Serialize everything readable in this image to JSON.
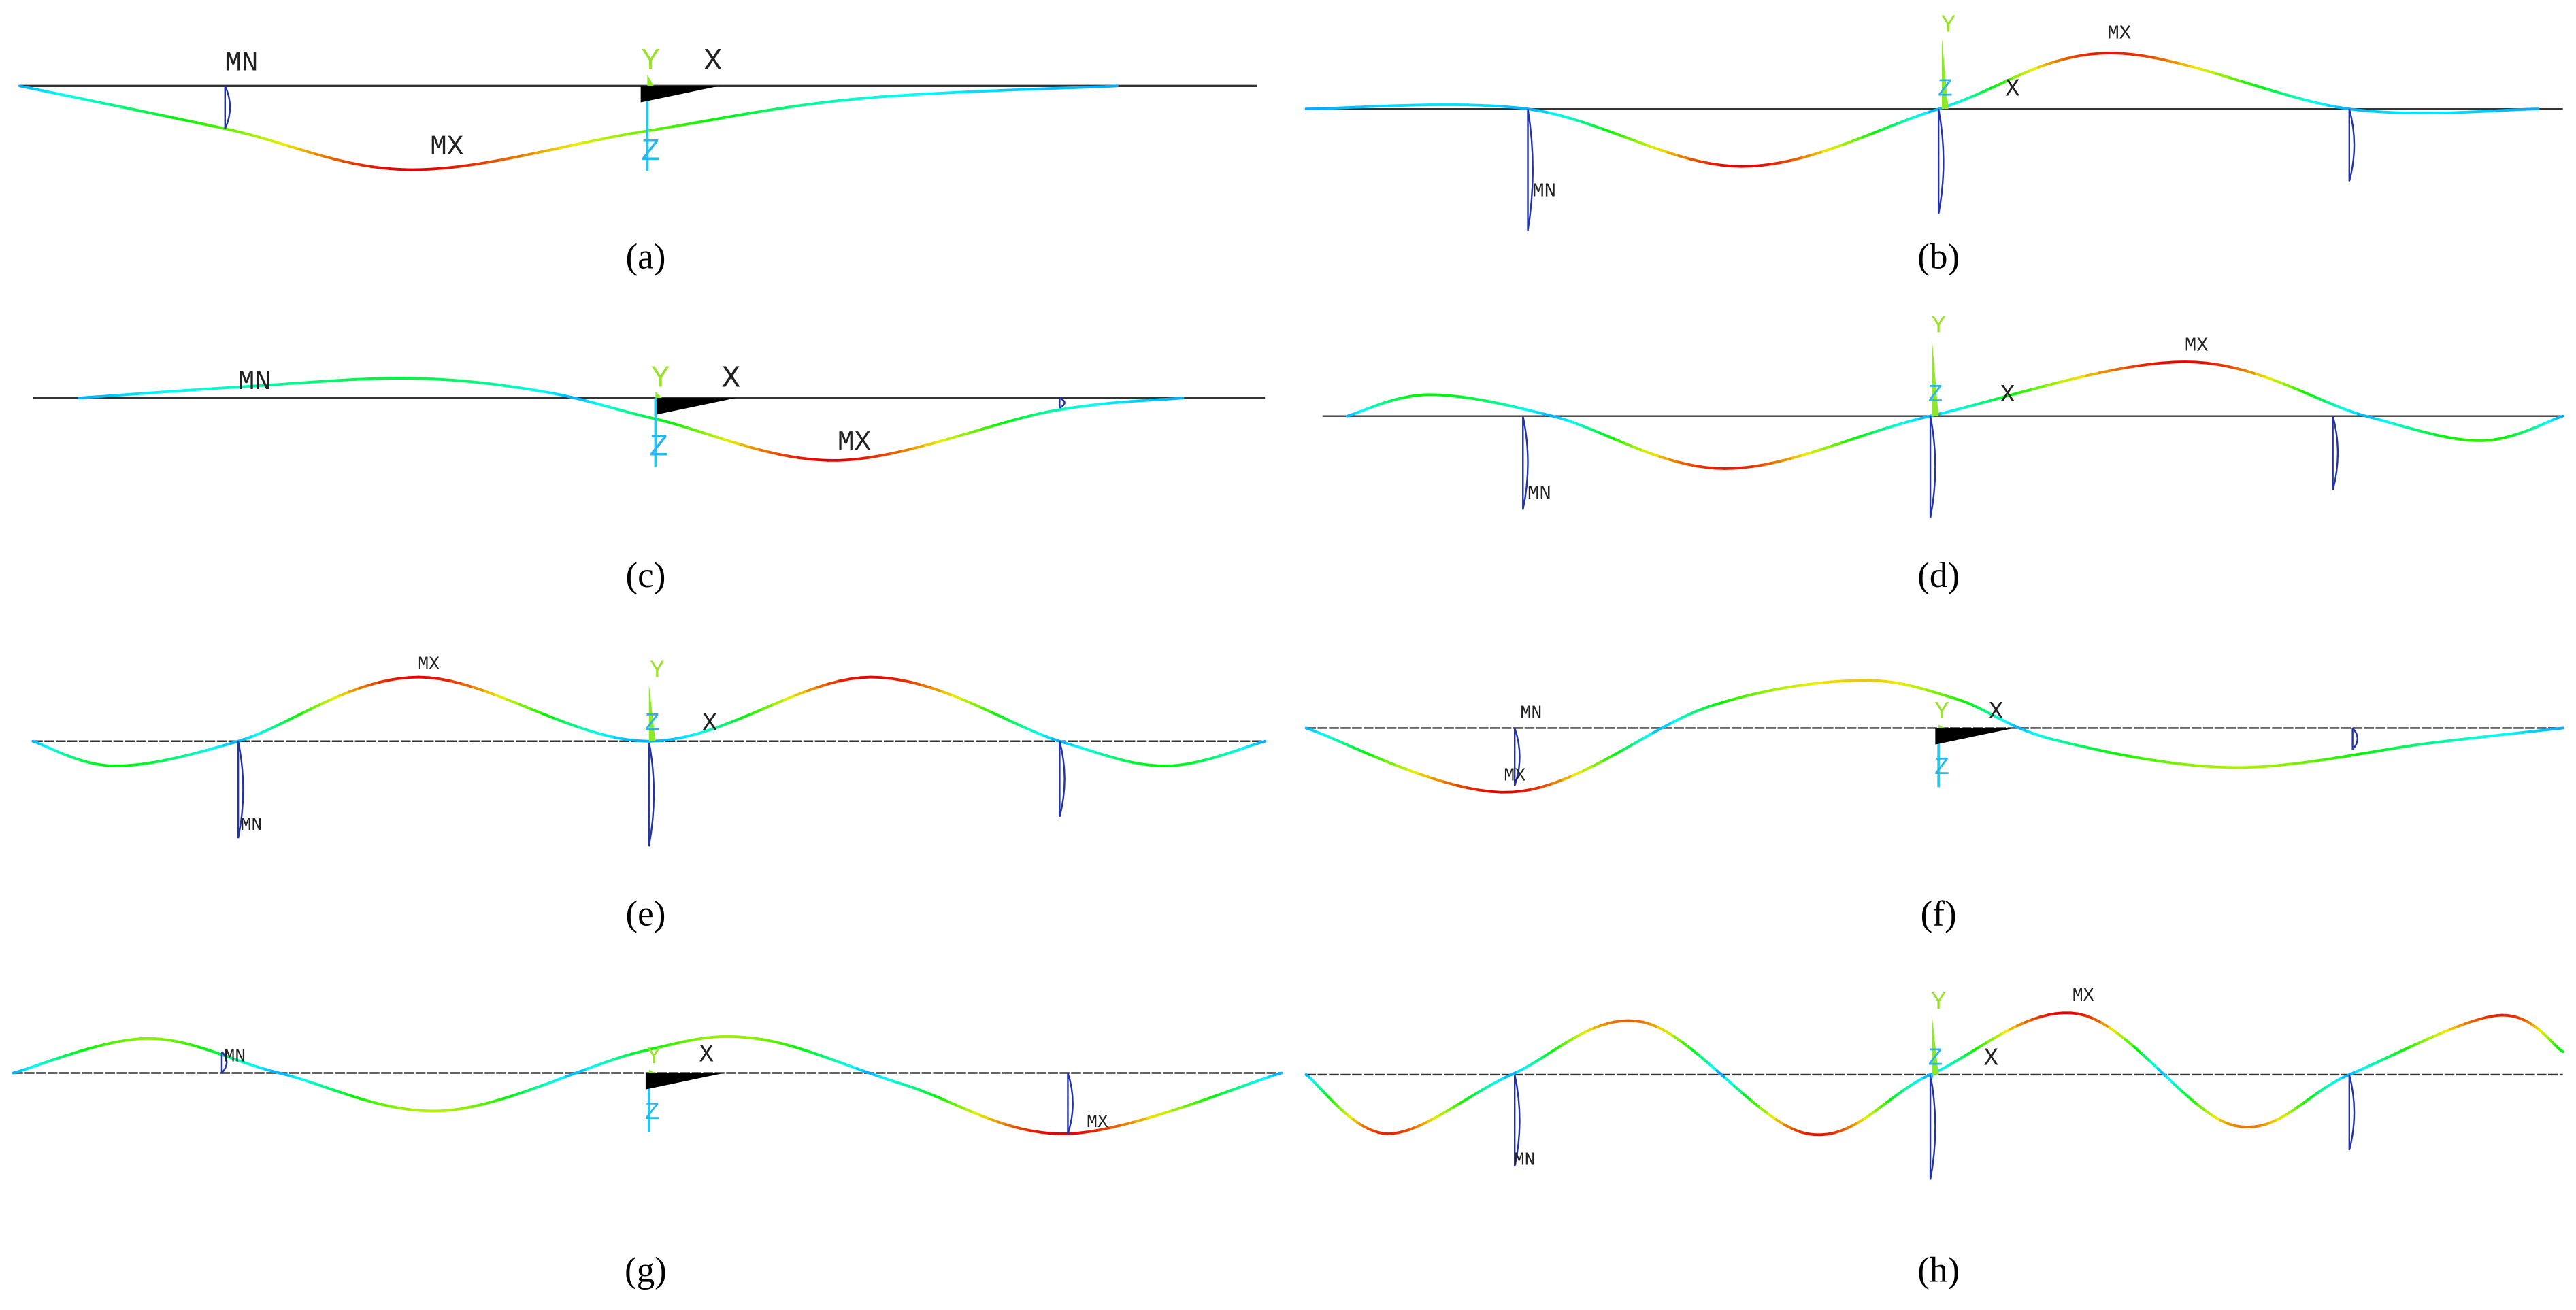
{
  "panels": [
    {
      "caption": "(a)",
      "labels": {
        "mn": "MN",
        "mx": "MX",
        "x": "X",
        "y": "Y",
        "z": "Z"
      }
    },
    {
      "caption": "(b)",
      "labels": {
        "mn": "MN",
        "mx": "MX",
        "x": "X",
        "y": "Y",
        "z": "Z"
      }
    },
    {
      "caption": "(c)",
      "labels": {
        "mn": "MN",
        "mx": "MX",
        "x": "X",
        "y": "Y",
        "z": "Z"
      }
    },
    {
      "caption": "(d)",
      "labels": {
        "mn": "MN",
        "mx": "MX",
        "x": "X",
        "y": "Y",
        "z": "Z"
      }
    },
    {
      "caption": "(e)",
      "labels": {
        "mn": "MN",
        "mx": "MX",
        "x": "X",
        "y": "Y",
        "z": "Z"
      }
    },
    {
      "caption": "(f)",
      "labels": {
        "mn": "MN",
        "mx": "MX",
        "x": "X",
        "y": "Y",
        "z": "Z"
      }
    },
    {
      "caption": "(g)",
      "labels": {
        "mn": "MN",
        "mx": "MX",
        "x": "X",
        "y": "Y",
        "z": "Z"
      }
    },
    {
      "caption": "(h)",
      "labels": {
        "mn": "MN",
        "mx": "MX",
        "x": "X",
        "y": "Y",
        "z": "Z"
      }
    }
  ]
}
